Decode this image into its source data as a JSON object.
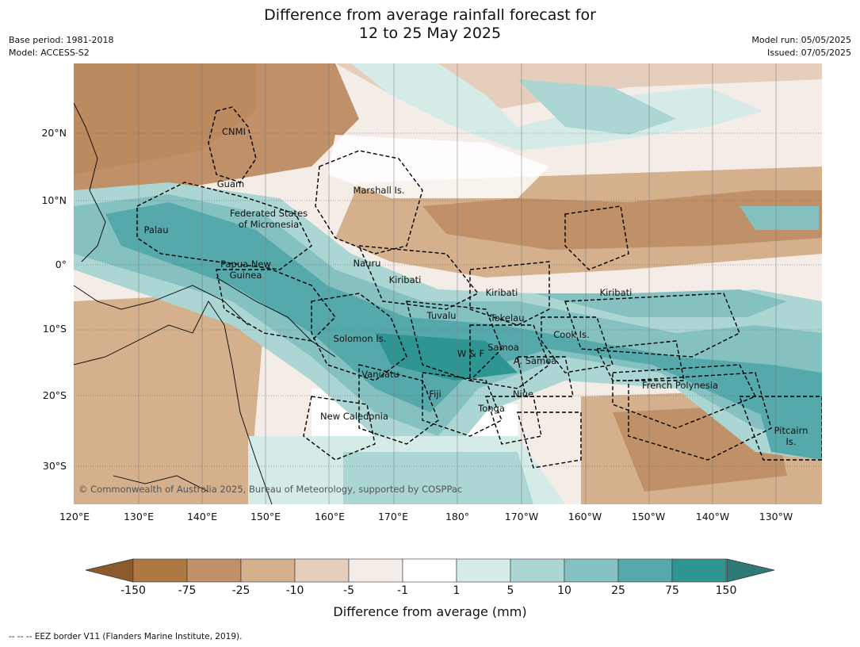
{
  "title": {
    "line1": "Difference from average rainfall forecast for",
    "line2": "12 to 25 May 2025"
  },
  "meta_left": {
    "base_period": "Base period: 1981-2018",
    "model": "Model: ACCESS-S2"
  },
  "meta_right": {
    "model_run": "Model run: 05/05/2025",
    "issued": "Issued: 07/05/2025"
  },
  "map": {
    "lat_labels": [
      "20°N",
      "10°N",
      "0°",
      "10°S",
      "20°S",
      "30°S"
    ],
    "lon_labels": [
      "120°E",
      "130°E",
      "140°E",
      "150°E",
      "160°E",
      "170°E",
      "180°",
      "170°W",
      "160°W",
      "150°W",
      "140°W",
      "130°W"
    ],
    "regions": [
      "CNMI",
      "Guam",
      "Marshall Is.",
      "Federated States",
      "of Micronesia",
      "Palau",
      "Papua New",
      "Guinea",
      "Nauru",
      "Kiribati",
      "Kiribati",
      "Kiribati",
      "Tokelau",
      "Tuvalu",
      "Cook Is.",
      "Solomon Is.",
      "W & F",
      "Samoa",
      "A. Samoa",
      "Vanuatu",
      "Fiji",
      "Niue",
      "Tonga",
      "French Polynesia",
      "New Caledonia",
      "Pitcairn",
      "Is."
    ],
    "copyright": "© Commonwealth of Australia 2025, Bureau of Meteorology, supported by COSPPac"
  },
  "colorbar": {
    "ticks": [
      "-150",
      "-75",
      "-25",
      "-10",
      "-5",
      "-1",
      "1",
      "5",
      "10",
      "25",
      "75",
      "150"
    ],
    "colors": {
      "below_min": "#8d5a2e",
      "bins": [
        "#ad7842",
        "#c09168",
        "#d4b08d",
        "#e5cfbc",
        "#f4ece6",
        "#ffffff",
        "#d5ebe8",
        "#acd6d3",
        "#84c1c0",
        "#56a9ab",
        "#2f9593"
      ],
      "above_max": "#2f7a77"
    },
    "label": "Difference from average (mm)"
  },
  "footnote": "--  --  -- EEZ border V11 (Flanders Marine Institute, 2019)."
}
